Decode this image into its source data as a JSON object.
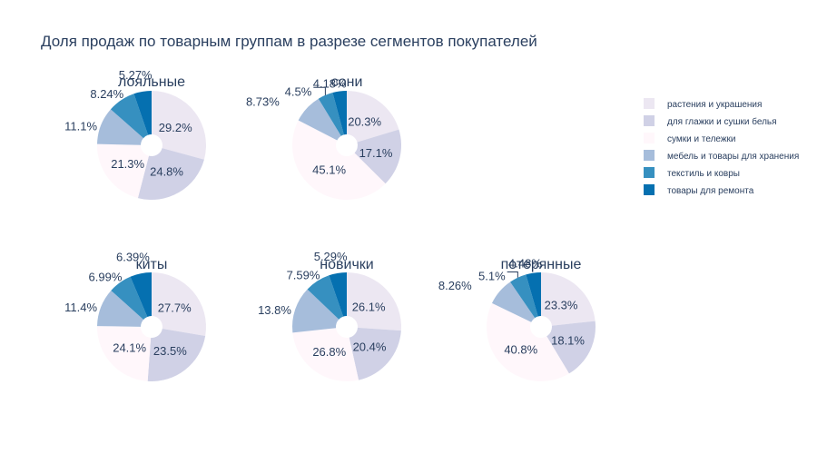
{
  "title": "Доля продаж по товарным группам в разрезе сегментов покупателей",
  "chart_data": {
    "type": "pie",
    "hole": true,
    "legend_position": "right",
    "categories": [
      "растения и украшения",
      "для глажки и сушки белья",
      "сумки и тележки",
      "мебель и товары для хранения",
      "текстиль и ковры",
      "товары для ремонта"
    ],
    "colors": [
      "#ECE7F2",
      "#D0D1E6",
      "#FFF7FB",
      "#A6BDDB",
      "#3690C0",
      "#0570B0"
    ],
    "charts": [
      {
        "title": "лояльные",
        "values": [
          29.2,
          24.8,
          21.3,
          11.1,
          8.24,
          5.27
        ],
        "labels": [
          "29.2%",
          "24.8%",
          "21.3%",
          "11.1%",
          "8.24%",
          "5.27%"
        ]
      },
      {
        "title": "сони",
        "values": [
          20.3,
          17.1,
          45.1,
          8.73,
          4.5,
          4.18
        ],
        "labels": [
          "20.3%",
          "17.1%",
          "45.1%",
          "8.73%",
          "4.5%",
          "4.18%"
        ]
      },
      {
        "title": "киты",
        "values": [
          27.7,
          23.5,
          24.1,
          11.4,
          6.99,
          6.39
        ],
        "labels": [
          "27.7%",
          "23.5%",
          "24.1%",
          "11.4%",
          "6.99%",
          "6.39%"
        ]
      },
      {
        "title": "новички",
        "values": [
          26.1,
          20.4,
          26.8,
          13.8,
          7.59,
          5.29
        ],
        "labels": [
          "26.1%",
          "20.4%",
          "26.8%",
          "13.8%",
          "7.59%",
          "5.29%"
        ]
      },
      {
        "title": "потерянные",
        "values": [
          23.3,
          18.1,
          40.8,
          8.26,
          5.1,
          4.48
        ],
        "labels": [
          "23.3%",
          "18.1%",
          "40.8%",
          "8.26%",
          "5.1%",
          "4.48%"
        ]
      }
    ]
  }
}
